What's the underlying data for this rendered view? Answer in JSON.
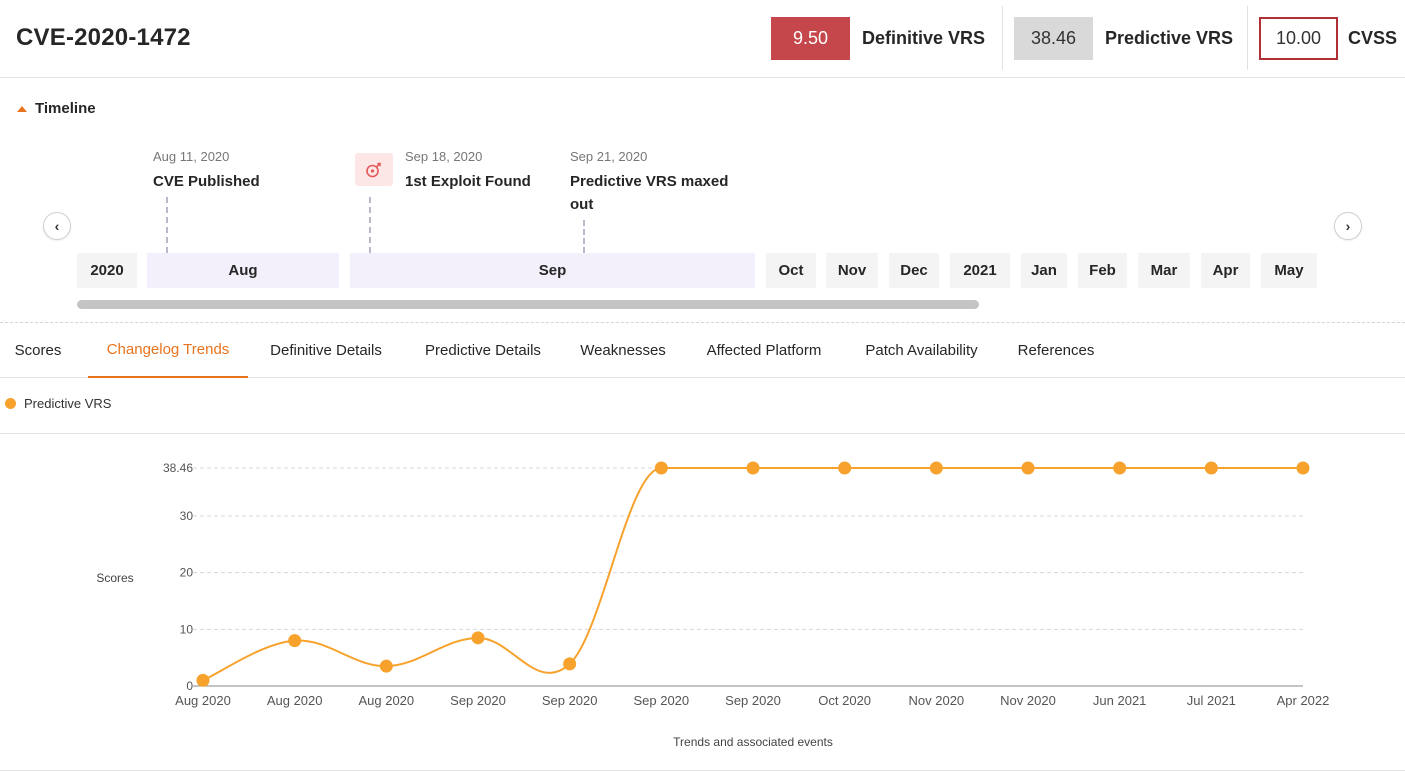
{
  "header": {
    "cve_id": "CVE-2020-1472",
    "definitive": {
      "value": "9.50",
      "label": "Definitive VRS",
      "color": "#c5474b"
    },
    "predictive": {
      "value": "38.46",
      "label": "Predictive VRS",
      "color": "#d9d9d9"
    },
    "cvss": {
      "value": "10.00",
      "label": "CVSS",
      "color": "#b13038"
    }
  },
  "timeline": {
    "title": "Timeline",
    "events": [
      {
        "date": "Aug 11, 2020",
        "name": "CVE Published"
      },
      {
        "date": "Sep 18, 2020",
        "name": "1st Exploit Found",
        "icon": "exploit-icon"
      },
      {
        "date": "Sep 21, 2020",
        "name": "Predictive VRS maxed out"
      }
    ],
    "months": [
      "2020",
      "Aug",
      "Sep",
      "Oct",
      "Nov",
      "Dec",
      "2021",
      "Jan",
      "Feb",
      "Mar",
      "Apr",
      "May"
    ],
    "active_months": [
      "Aug",
      "Sep"
    ],
    "prev_icon": "chevron-left-icon",
    "next_icon": "chevron-right-icon"
  },
  "tabs": [
    {
      "label": "Scores"
    },
    {
      "label": "Changelog Trends",
      "active": true
    },
    {
      "label": "Definitive Details"
    },
    {
      "label": "Predictive Details"
    },
    {
      "label": "Weaknesses"
    },
    {
      "label": "Affected Platform"
    },
    {
      "label": "Patch Availability"
    },
    {
      "label": "References"
    }
  ],
  "colors": {
    "accent": "#e8731d",
    "series": "#f7a22c"
  },
  "chart_data": {
    "type": "line",
    "title": "",
    "xlabel": "Trends and associated events",
    "ylabel": "Scores",
    "legend": "top-left",
    "grid": true,
    "ylim": [
      0,
      38.46
    ],
    "yticks": [
      "0",
      "10",
      "20",
      "30",
      "38.46"
    ],
    "categories": [
      "Aug 2020",
      "Aug 2020",
      "Aug 2020",
      "Sep 2020",
      "Sep 2020",
      "Sep 2020",
      "Sep 2020",
      "Oct 2020",
      "Nov 2020",
      "Nov 2020",
      "Jun 2021",
      "Jul 2021",
      "Apr 2022"
    ],
    "series": [
      {
        "name": "Predictive VRS",
        "values": [
          1.0,
          8.0,
          3.5,
          8.5,
          3.9,
          38.46,
          38.46,
          38.46,
          38.46,
          38.46,
          38.46,
          38.46,
          38.46
        ]
      }
    ]
  }
}
